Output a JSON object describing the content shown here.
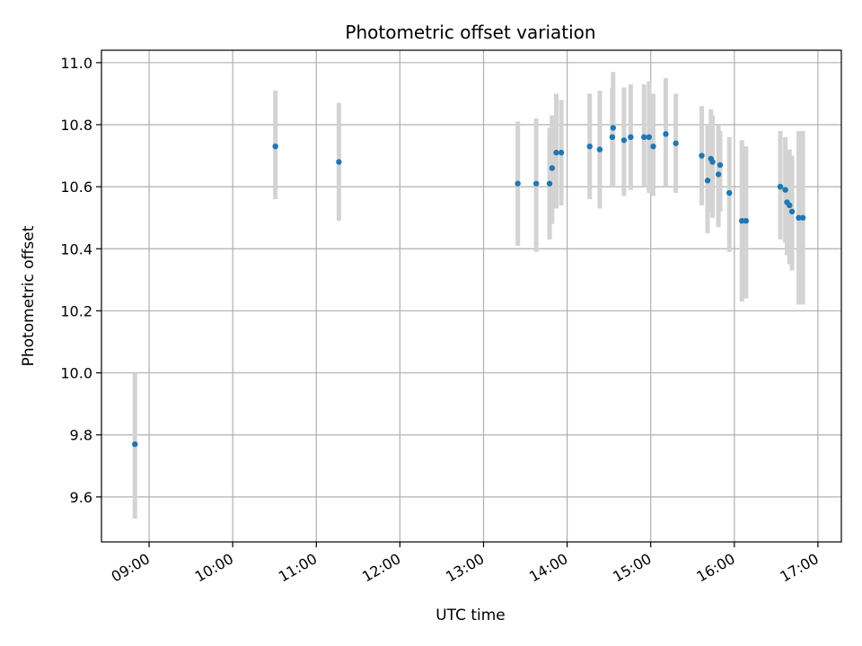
{
  "chart_data": {
    "type": "scatter",
    "title": "Photometric offset variation",
    "xlabel": "UTC time",
    "ylabel": "Photometric offset",
    "xlim": [
      8.43,
      17.28
    ],
    "ylim": [
      9.455,
      11.04
    ],
    "grid": true,
    "x_ticks": [
      {
        "value": 9,
        "label": "09:00"
      },
      {
        "value": 10,
        "label": "10:00"
      },
      {
        "value": 11,
        "label": "11:00"
      },
      {
        "value": 12,
        "label": "12:00"
      },
      {
        "value": 13,
        "label": "13:00"
      },
      {
        "value": 14,
        "label": "14:00"
      },
      {
        "value": 15,
        "label": "15:00"
      },
      {
        "value": 16,
        "label": "16:00"
      },
      {
        "value": 17,
        "label": "17:00"
      }
    ],
    "y_ticks": [
      {
        "value": 9.6,
        "label": "9.6"
      },
      {
        "value": 9.8,
        "label": "9.8"
      },
      {
        "value": 10.0,
        "label": "10.0"
      },
      {
        "value": 10.2,
        "label": "10.2"
      },
      {
        "value": 10.4,
        "label": "10.4"
      },
      {
        "value": 10.6,
        "label": "10.6"
      },
      {
        "value": 10.8,
        "label": "10.8"
      },
      {
        "value": 11.0,
        "label": "11.0"
      }
    ],
    "colors": {
      "point": "#1f77b4",
      "error": "#d3d3d3",
      "grid": "#b0b0b0"
    },
    "series": [
      {
        "name": "Photometric offset",
        "points": [
          {
            "x": 8.83,
            "y": 9.77,
            "lo": 9.53,
            "hi": 10.0
          },
          {
            "x": 10.51,
            "y": 10.73,
            "lo": 10.56,
            "hi": 10.91
          },
          {
            "x": 11.27,
            "y": 10.68,
            "lo": 10.49,
            "hi": 10.87
          },
          {
            "x": 13.41,
            "y": 10.61,
            "lo": 10.41,
            "hi": 10.81
          },
          {
            "x": 13.63,
            "y": 10.61,
            "lo": 10.39,
            "hi": 10.82
          },
          {
            "x": 13.79,
            "y": 10.61,
            "lo": 10.43,
            "hi": 10.79
          },
          {
            "x": 13.82,
            "y": 10.66,
            "lo": 10.48,
            "hi": 10.83
          },
          {
            "x": 13.87,
            "y": 10.71,
            "lo": 10.53,
            "hi": 10.9
          },
          {
            "x": 13.93,
            "y": 10.71,
            "lo": 10.54,
            "hi": 10.88
          },
          {
            "x": 14.27,
            "y": 10.73,
            "lo": 10.56,
            "hi": 10.9
          },
          {
            "x": 14.39,
            "y": 10.72,
            "lo": 10.53,
            "hi": 10.91
          },
          {
            "x": 14.54,
            "y": 10.76,
            "lo": 10.6,
            "hi": 10.92
          },
          {
            "x": 14.55,
            "y": 10.79,
            "lo": 10.6,
            "hi": 10.97
          },
          {
            "x": 14.68,
            "y": 10.75,
            "lo": 10.57,
            "hi": 10.92
          },
          {
            "x": 14.76,
            "y": 10.76,
            "lo": 10.59,
            "hi": 10.93
          },
          {
            "x": 14.92,
            "y": 10.76,
            "lo": 10.6,
            "hi": 10.93
          },
          {
            "x": 14.98,
            "y": 10.76,
            "lo": 10.58,
            "hi": 10.94
          },
          {
            "x": 15.03,
            "y": 10.73,
            "lo": 10.57,
            "hi": 10.9
          },
          {
            "x": 15.18,
            "y": 10.77,
            "lo": 10.6,
            "hi": 10.95
          },
          {
            "x": 15.3,
            "y": 10.74,
            "lo": 10.58,
            "hi": 10.9
          },
          {
            "x": 15.61,
            "y": 10.7,
            "lo": 10.54,
            "hi": 10.86
          },
          {
            "x": 15.68,
            "y": 10.62,
            "lo": 10.45,
            "hi": 10.8
          },
          {
            "x": 15.72,
            "y": 10.69,
            "lo": 10.52,
            "hi": 10.85
          },
          {
            "x": 15.74,
            "y": 10.68,
            "lo": 10.5,
            "hi": 10.83
          },
          {
            "x": 15.81,
            "y": 10.64,
            "lo": 10.47,
            "hi": 10.8
          },
          {
            "x": 15.83,
            "y": 10.67,
            "lo": 10.52,
            "hi": 10.78
          },
          {
            "x": 15.94,
            "y": 10.58,
            "lo": 10.39,
            "hi": 10.76
          },
          {
            "x": 16.09,
            "y": 10.49,
            "lo": 10.23,
            "hi": 10.75
          },
          {
            "x": 16.14,
            "y": 10.49,
            "lo": 10.24,
            "hi": 10.73
          },
          {
            "x": 16.55,
            "y": 10.6,
            "lo": 10.43,
            "hi": 10.78
          },
          {
            "x": 16.61,
            "y": 10.59,
            "lo": 10.42,
            "hi": 10.76
          },
          {
            "x": 16.63,
            "y": 10.55,
            "lo": 10.38,
            "hi": 10.71
          },
          {
            "x": 16.66,
            "y": 10.54,
            "lo": 10.35,
            "hi": 10.72
          },
          {
            "x": 16.69,
            "y": 10.52,
            "lo": 10.33,
            "hi": 10.7
          },
          {
            "x": 16.77,
            "y": 10.5,
            "lo": 10.22,
            "hi": 10.78
          },
          {
            "x": 16.82,
            "y": 10.5,
            "lo": 10.22,
            "hi": 10.78
          }
        ]
      }
    ]
  }
}
